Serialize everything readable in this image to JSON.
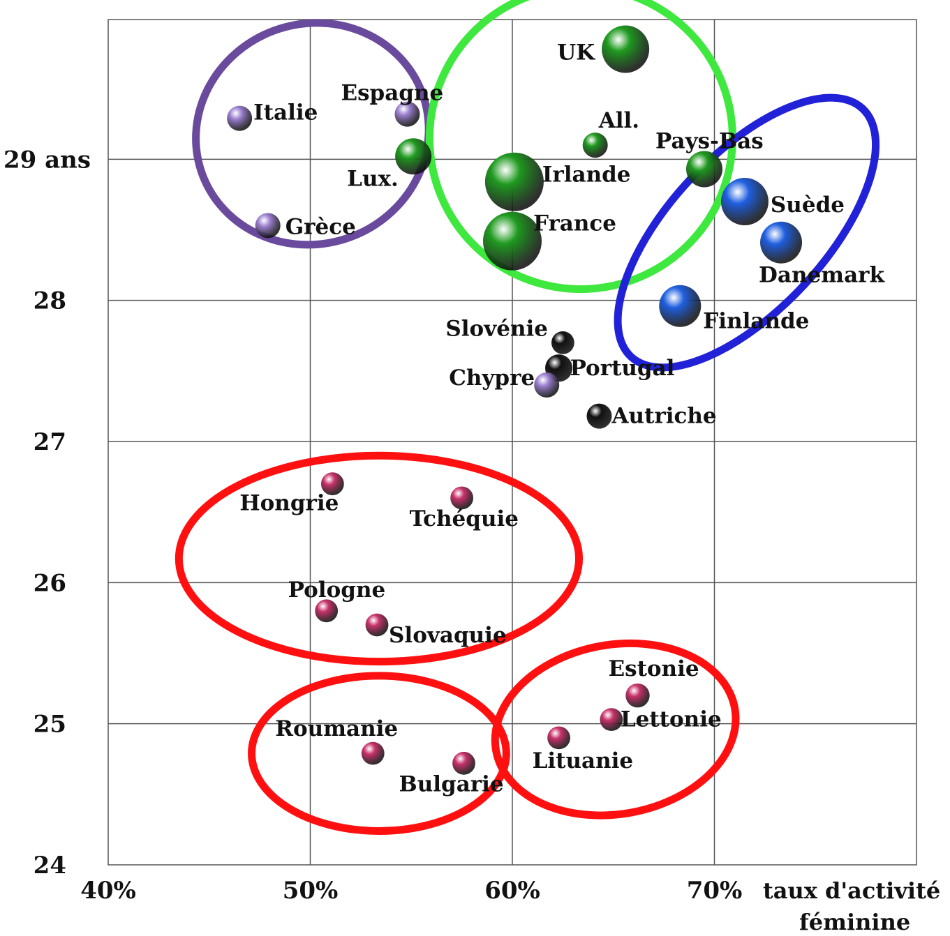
{
  "chart_data": {
    "type": "scatter",
    "title": "",
    "xlabel": [
      "taux d'activité",
      "féminine"
    ],
    "ylabel": "",
    "xlim": [
      40,
      80
    ],
    "ylim": [
      24,
      29.99
    ],
    "x_ticks": [
      {
        "value": 40,
        "label": "40%"
      },
      {
        "value": 50,
        "label": "50%"
      },
      {
        "value": 60,
        "label": "60%"
      },
      {
        "value": 70,
        "label": "70%"
      }
    ],
    "y_ticks": [
      {
        "value": 24,
        "label": "24"
      },
      {
        "value": 25,
        "label": "25"
      },
      {
        "value": 26,
        "label": "26"
      },
      {
        "value": 27,
        "label": "27"
      },
      {
        "value": 28,
        "label": "28"
      },
      {
        "value": 29,
        "label": "29 ans"
      }
    ],
    "grid": true,
    "colors": {
      "purple": "#9b7fcf",
      "green": "#1f9a1f",
      "blue": "#1f5fe0",
      "black": "#111111",
      "pink": "#c8326a",
      "ellipse_purple": "#6a4a9c",
      "ellipse_green": "#3ee83e",
      "ellipse_blue": "#2121d8",
      "ellipse_red": "#ff1010"
    },
    "points": [
      {
        "label": "Italie",
        "x": 46.5,
        "y": 29.29,
        "size": 1,
        "color": "purple"
      },
      {
        "label": "Espagne",
        "x": 54.8,
        "y": 29.32,
        "size": 1,
        "color": "purple"
      },
      {
        "label": "Lux.",
        "x": 55.1,
        "y": 29.02,
        "size": 2,
        "color": "green"
      },
      {
        "label": "Grèce",
        "x": 47.9,
        "y": 28.53,
        "size": 1,
        "color": "purple"
      },
      {
        "label": "UK",
        "x": 65.6,
        "y": 29.78,
        "size": 3,
        "color": "green"
      },
      {
        "label": "All.",
        "x": 64.1,
        "y": 29.1,
        "size": 1,
        "color": "green"
      },
      {
        "label": "Pays-Bas",
        "x": 69.5,
        "y": 28.93,
        "size": 2,
        "color": "green"
      },
      {
        "label": "Irlande",
        "x": 60.1,
        "y": 28.84,
        "size": 4,
        "color": "green"
      },
      {
        "label": "France",
        "x": 60,
        "y": 28.42,
        "size": 4,
        "color": "green"
      },
      {
        "label": "Suède",
        "x": 71.5,
        "y": 28.7,
        "size": 3,
        "color": "blue"
      },
      {
        "label": "Danemark",
        "x": 73.3,
        "y": 28.41,
        "size": 2.5,
        "color": "blue"
      },
      {
        "label": "Finlande",
        "x": 68.3,
        "y": 27.96,
        "size": 2.5,
        "color": "blue"
      },
      {
        "label": "Slovénie",
        "x": 62.5,
        "y": 27.7,
        "size": 0.8,
        "color": "black"
      },
      {
        "label": "Portugal",
        "x": 62.3,
        "y": 27.52,
        "size": 1.2,
        "color": "black"
      },
      {
        "label": "Chypre",
        "x": 61.7,
        "y": 27.4,
        "size": 1,
        "color": "purple"
      },
      {
        "label": "Autriche",
        "x": 64.3,
        "y": 27.18,
        "size": 1,
        "color": "black"
      },
      {
        "label": "Hongrie",
        "x": 51.1,
        "y": 26.7,
        "size": 0.8,
        "color": "pink"
      },
      {
        "label": "Tchéquie",
        "x": 57.5,
        "y": 26.6,
        "size": 0.8,
        "color": "pink"
      },
      {
        "label": "Pologne",
        "x": 50.8,
        "y": 25.8,
        "size": 0.8,
        "color": "pink"
      },
      {
        "label": "Slovaquie",
        "x": 53.3,
        "y": 25.7,
        "size": 0.8,
        "color": "pink"
      },
      {
        "label": "Estonie",
        "x": 66.2,
        "y": 25.2,
        "size": 0.9,
        "color": "pink"
      },
      {
        "label": "Lettonie",
        "x": 64.9,
        "y": 25.03,
        "size": 0.8,
        "color": "pink"
      },
      {
        "label": "Lituanie",
        "x": 62.3,
        "y": 24.9,
        "size": 0.8,
        "color": "pink"
      },
      {
        "label": "Roumanie",
        "x": 53.1,
        "y": 24.79,
        "size": 0.8,
        "color": "pink"
      },
      {
        "label": "Bulgarie",
        "x": 57.6,
        "y": 24.72,
        "size": 0.8,
        "color": "pink"
      }
    ],
    "groups": [
      {
        "color": "ellipse_purple",
        "cx": 50.1,
        "cy": 29.18,
        "rx": 5.8,
        "ry": 0.78,
        "rotate": -20
      },
      {
        "color": "ellipse_green",
        "cx": 63.4,
        "cy": 29.15,
        "rx": 7.5,
        "ry": 1.07,
        "rotate": -25
      },
      {
        "color": "ellipse_blue",
        "cx": 71.6,
        "cy": 28.48,
        "rx": 8.4,
        "ry": 0.55,
        "rotate": -47
      },
      {
        "color": "ellipse_red",
        "cx": 53.4,
        "cy": 26.17,
        "rx": 9.9,
        "ry": 0.73,
        "rotate": 0
      },
      {
        "color": "ellipse_red",
        "cx": 53.4,
        "cy": 24.79,
        "rx": 6.3,
        "ry": 0.55,
        "rotate": 0
      },
      {
        "color": "ellipse_red",
        "cx": 65.1,
        "cy": 24.96,
        "rx": 6,
        "ry": 0.6,
        "rotate": -10
      }
    ]
  }
}
